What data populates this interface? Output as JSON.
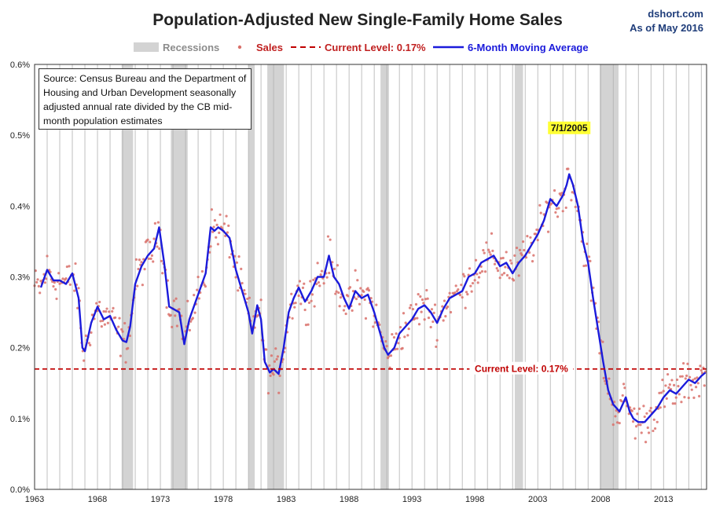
{
  "header": {
    "title": "Population-Adjusted New Single-Family Home Sales",
    "brand": "dshort.com",
    "date_note": "As of May 2016"
  },
  "legend": {
    "recessions": "Recessions",
    "sales": "Sales",
    "current_level": "Current Level: 0.17%",
    "moving_average": "6-Month Moving Average"
  },
  "source_note": "Source: Census Bureau and the Department of Housing and Urban Development seasonally adjusted annual rate divided by the CB mid-month population estimates",
  "annotations": {
    "peak_label": "7/1/2005",
    "current_label": "Current Level: 0.17%"
  },
  "colors": {
    "recession": "#d3d3d3",
    "sales_dots": "#d9706a",
    "current_line": "#c00000",
    "moving_average": "#1b1bdb",
    "peak_highlight": "#ffff33",
    "grid": "#b0b0b0"
  },
  "chart_data": {
    "type": "line",
    "title": "Population-Adjusted New Single-Family Home Sales",
    "xlabel": "",
    "ylabel": "",
    "xlim": [
      1963,
      2016.42
    ],
    "ylim": [
      0,
      0.6
    ],
    "x_ticks": [
      "1963",
      "1968",
      "1973",
      "1978",
      "1983",
      "1988",
      "1993",
      "1998",
      "2003",
      "2008",
      "2013"
    ],
    "y_ticks": [
      "0.0%",
      "0.1%",
      "0.2%",
      "0.3%",
      "0.4%",
      "0.5%",
      "0.6%"
    ],
    "grid": "vertical",
    "legend_position": "top-center",
    "current_level": 0.17,
    "peak": {
      "date": "7/1/2005",
      "value": 0.445
    },
    "recessions": [
      [
        1969.92,
        1970.83
      ],
      [
        1973.83,
        1975.17
      ],
      [
        1980.0,
        1980.5
      ],
      [
        1981.5,
        1982.83
      ],
      [
        1990.5,
        1991.17
      ],
      [
        2001.17,
        2001.83
      ],
      [
        2007.92,
        2009.42
      ]
    ],
    "series": [
      {
        "name": "6-Month Moving Average",
        "x": [
          1963.5,
          1964.0,
          1964.5,
          1965.0,
          1965.5,
          1966.0,
          1966.5,
          1966.8,
          1967.0,
          1967.5,
          1968.0,
          1968.5,
          1969.0,
          1969.5,
          1970.0,
          1970.3,
          1970.6,
          1971.0,
          1971.5,
          1972.0,
          1972.5,
          1972.9,
          1973.3,
          1973.7,
          1974.0,
          1974.5,
          1974.9,
          1975.3,
          1975.8,
          1976.2,
          1976.6,
          1977.0,
          1977.3,
          1977.6,
          1978.0,
          1978.5,
          1979.0,
          1979.5,
          1980.0,
          1980.3,
          1980.7,
          1981.0,
          1981.3,
          1981.7,
          1982.0,
          1982.4,
          1982.8,
          1983.2,
          1983.6,
          1984.0,
          1984.5,
          1985.0,
          1985.5,
          1986.0,
          1986.4,
          1986.8,
          1987.2,
          1987.6,
          1988.0,
          1988.5,
          1989.0,
          1989.5,
          1990.0,
          1990.4,
          1990.8,
          1991.1,
          1991.6,
          1992.0,
          1992.5,
          1993.0,
          1993.5,
          1994.0,
          1994.5,
          1995.0,
          1995.5,
          1996.0,
          1996.5,
          1997.0,
          1997.5,
          1998.0,
          1998.5,
          1999.0,
          1999.5,
          2000.0,
          2000.5,
          2001.0,
          2001.5,
          2002.0,
          2002.5,
          2003.0,
          2003.5,
          2004.0,
          2004.5,
          2005.0,
          2005.3,
          2005.5,
          2005.8,
          2006.2,
          2006.6,
          2007.0,
          2007.4,
          2007.8,
          2008.2,
          2008.6,
          2009.0,
          2009.5,
          2010.0,
          2010.3,
          2010.6,
          2011.0,
          2011.5,
          2012.0,
          2012.5,
          2013.0,
          2013.5,
          2014.0,
          2014.5,
          2015.0,
          2015.5,
          2016.0,
          2016.33
        ],
        "values": [
          0.285,
          0.31,
          0.295,
          0.295,
          0.29,
          0.305,
          0.27,
          0.2,
          0.195,
          0.235,
          0.258,
          0.24,
          0.245,
          0.225,
          0.21,
          0.208,
          0.23,
          0.29,
          0.315,
          0.33,
          0.34,
          0.37,
          0.32,
          0.258,
          0.255,
          0.25,
          0.205,
          0.24,
          0.265,
          0.285,
          0.305,
          0.37,
          0.365,
          0.37,
          0.365,
          0.355,
          0.31,
          0.28,
          0.25,
          0.22,
          0.26,
          0.24,
          0.18,
          0.165,
          0.17,
          0.163,
          0.2,
          0.25,
          0.27,
          0.285,
          0.265,
          0.28,
          0.3,
          0.3,
          0.33,
          0.3,
          0.29,
          0.27,
          0.255,
          0.28,
          0.27,
          0.275,
          0.25,
          0.225,
          0.2,
          0.19,
          0.2,
          0.22,
          0.23,
          0.24,
          0.255,
          0.26,
          0.25,
          0.235,
          0.255,
          0.27,
          0.275,
          0.28,
          0.3,
          0.305,
          0.32,
          0.325,
          0.33,
          0.315,
          0.32,
          0.305,
          0.32,
          0.33,
          0.345,
          0.36,
          0.38,
          0.41,
          0.4,
          0.415,
          0.43,
          0.445,
          0.43,
          0.4,
          0.35,
          0.32,
          0.27,
          0.225,
          0.18,
          0.14,
          0.12,
          0.11,
          0.13,
          0.11,
          0.1,
          0.095,
          0.095,
          0.105,
          0.115,
          0.13,
          0.14,
          0.135,
          0.145,
          0.155,
          0.15,
          0.16,
          0.165
        ]
      }
    ]
  }
}
